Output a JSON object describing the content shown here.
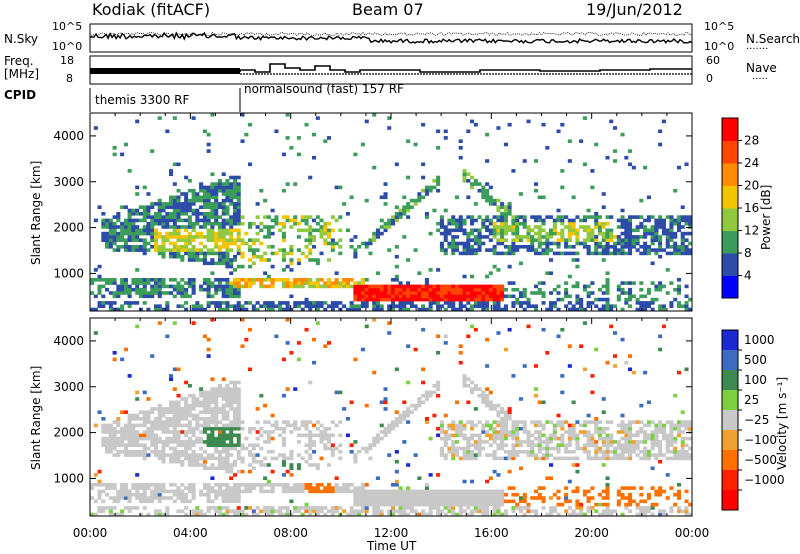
{
  "header": {
    "title": "Kodiak (fitACF)",
    "beam": "Beam 07",
    "date": "19/Jun/2012"
  },
  "panels": {
    "nsky": {
      "label": "N.Sky",
      "ticks": [
        "10^5",
        "10^0"
      ]
    },
    "nsearch": {
      "label": "N.Search",
      "ticks": [
        "10^5",
        "10^0"
      ]
    },
    "freq": {
      "label_line1": "Freq.",
      "label_line2": "[MHz]",
      "ticks": [
        "18",
        "8"
      ]
    },
    "nave": {
      "label": "Nave",
      "ticks": [
        "60",
        "0"
      ]
    },
    "cpid": {
      "label": "CPID",
      "segments": [
        "themis 3300 RF",
        "normalsound (fast) 157 RF"
      ]
    }
  },
  "power_colorbar": {
    "label": "Power [dB]",
    "ticks": [
      "28",
      "24",
      "20",
      "16",
      "12",
      "8",
      "4"
    ],
    "colors": [
      "#ff0000",
      "#ff4500",
      "#ff8c00",
      "#f5c400",
      "#90c840",
      "#3c9c5a",
      "#2c4ca8",
      "#0000ff"
    ]
  },
  "velocity_colorbar": {
    "label": "Velocity [m s⁻¹]",
    "ticks": [
      "1000",
      "500",
      "100",
      "25",
      "−25",
      "−100",
      "−500",
      "−1000"
    ],
    "colors": [
      "#1a2ad0",
      "#3c6cc0",
      "#3c8a50",
      "#7ad040",
      "#c8c8c8",
      "#f0a030",
      "#ff7000",
      "#ff2000",
      "#ff0000"
    ]
  },
  "time_axis": {
    "ticks": [
      "00:00",
      "04:00",
      "08:00",
      "12:00",
      "16:00",
      "20:00",
      "00:00"
    ],
    "label": "Time UT"
  },
  "range_axis": {
    "label": "Slant Range [km]",
    "ticks": [
      "4000",
      "3000",
      "2000",
      "1000"
    ]
  },
  "chart_data": {
    "type": "heatmap",
    "x_range_hours": [
      0,
      24
    ],
    "y_range_km": [
      180,
      4500
    ],
    "power_clim_db": [
      0,
      32
    ],
    "velocity_clim": [
      -1000,
      1000
    ],
    "freq_mhz": {
      "themis_period": 10.5,
      "normalsound_period": 10.6
    },
    "cpid_switch_hour": 6.0,
    "power_features": [
      {
        "name": "near range band",
        "hours": [
          0,
          24
        ],
        "range": [
          200,
          400
        ],
        "power": 6
      },
      {
        "name": "strong E region echo",
        "hours": [
          10.5,
          16.5
        ],
        "range": [
          400,
          800
        ],
        "power": 30
      },
      {
        "name": "morning F region",
        "hours": [
          0.5,
          6
        ],
        "range": [
          1200,
          2600
        ],
        "power": 10
      },
      {
        "name": "afternoon F region",
        "hours": [
          14,
          24
        ],
        "range": [
          1500,
          2600
        ],
        "power": 9
      },
      {
        "name": "arc rising to 3000 km",
        "hours": [
          13,
          15
        ],
        "range": [
          2000,
          3300
        ],
        "power": 8
      }
    ]
  }
}
